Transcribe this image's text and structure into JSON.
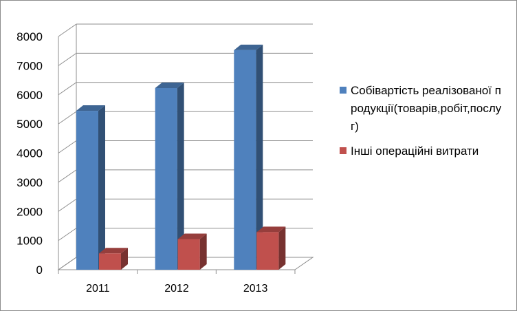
{
  "chart_data": {
    "type": "bar",
    "categories": [
      "2011",
      "2012",
      "2013"
    ],
    "series": [
      {
        "name": "Собівартість реалізованої продукції(товарів,робіт,послуг)",
        "values": [
          5450,
          6230,
          7530
        ],
        "color": "#4F81BD"
      },
      {
        "name": "Інші операційні витрати",
        "values": [
          560,
          1050,
          1290
        ],
        "color": "#C0504D"
      }
    ],
    "yticks": [
      "0",
      "1000",
      "2000",
      "3000",
      "4000",
      "5000",
      "6000",
      "7000",
      "8000"
    ],
    "ylim": [
      0,
      8000
    ],
    "grid": true,
    "legend_position": "right",
    "three_d": true
  }
}
